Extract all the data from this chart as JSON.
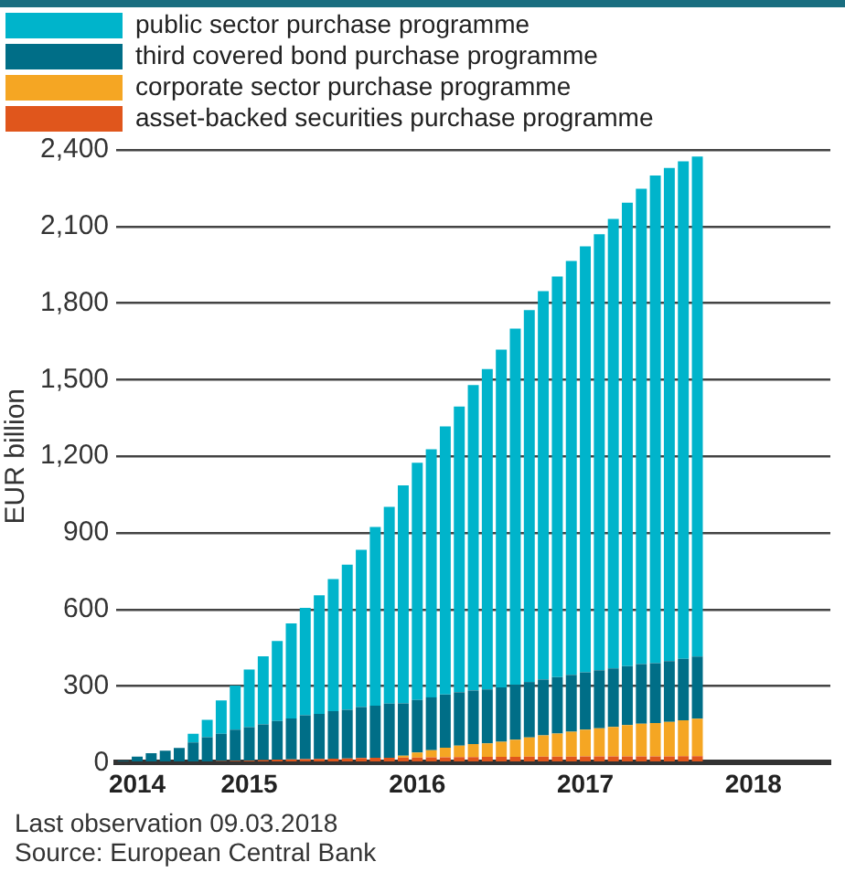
{
  "chart_data": {
    "type": "bar",
    "stacked": true,
    "ylabel": "EUR billion",
    "categories": [
      null,
      "2014",
      null,
      null,
      null,
      null,
      null,
      null,
      null,
      "2015",
      null,
      null,
      null,
      null,
      null,
      null,
      null,
      null,
      null,
      null,
      null,
      "2016",
      null,
      null,
      null,
      null,
      null,
      null,
      null,
      null,
      null,
      null,
      null,
      "2017",
      null,
      null,
      null,
      null,
      null,
      null,
      null,
      null,
      null,
      null,
      null,
      "2018",
      null,
      null,
      null,
      null,
      null
    ],
    "series": [
      {
        "name": "asset-backed securities purchase programme",
        "color": "#e0561c",
        "values": [
          null,
          null,
          null,
          null,
          null,
          null,
          null,
          7,
          8,
          9,
          10,
          12,
          13,
          14,
          15,
          16,
          17,
          18,
          19,
          19,
          20,
          20,
          21,
          21,
          22,
          22,
          23,
          23,
          23,
          24,
          24,
          24,
          24,
          25,
          25,
          25,
          25,
          25,
          25,
          25,
          26,
          26,
          null,
          null,
          null,
          null,
          null,
          null,
          null,
          null,
          null
        ]
      },
      {
        "name": "corporate sector purchase programme",
        "color": "#f5a623",
        "values": [
          0,
          0,
          0,
          0,
          0,
          0,
          0,
          0,
          0,
          0,
          0,
          0,
          0,
          0,
          0,
          0,
          0,
          0,
          0,
          0,
          7,
          20,
          28,
          38,
          45,
          51,
          53,
          59,
          67,
          75,
          83,
          90,
          97,
          104,
          110,
          115,
          122,
          128,
          130,
          135,
          140,
          146,
          null,
          null,
          null,
          null,
          null,
          null,
          null,
          null,
          null
        ]
      },
      {
        "name": "third covered bond purchase programme",
        "color": "#006e87",
        "values": [
          8,
          24,
          37,
          47,
          58,
          79,
          100,
          106,
          121,
          130,
          140,
          151,
          160,
          172,
          176,
          186,
          190,
          200,
          204,
          212,
          205,
          206,
          207,
          208,
          209,
          210,
          211,
          213,
          215,
          217,
          219,
          221,
          223,
          225,
          227,
          229,
          231,
          233,
          235,
          238,
          241,
          244,
          null,
          null,
          null,
          null,
          null,
          null,
          null,
          null,
          null
        ]
      },
      {
        "name": "public sector purchase programme",
        "color": "#00b4cb",
        "values": [
          0,
          0,
          0,
          0,
          0,
          34,
          68,
          131,
          173,
          226,
          267,
          314,
          373,
          420,
          465,
          517,
          569,
          616,
          700,
          771,
          854,
          929,
          972,
          1050,
          1119,
          1196,
          1255,
          1323,
          1395,
          1457,
          1521,
          1569,
          1621,
          1668,
          1708,
          1761,
          1815,
          1862,
          1910,
          1931,
          1948,
          1958,
          null,
          null,
          null,
          null,
          null,
          null,
          null,
          null,
          null
        ]
      }
    ],
    "ylim": [
      0,
      2400
    ],
    "yticks": [
      0,
      {
        "value": 300,
        "label": "300"
      },
      {
        "value": 600,
        "label": "600"
      },
      {
        "value": 900,
        "label": "900"
      },
      {
        "value": 1200,
        "label": "1,200"
      },
      {
        "value": 1500,
        "label": "1,500"
      },
      {
        "value": 1800,
        "label": "1,800"
      },
      {
        "value": 2100,
        "label": "2,100"
      },
      {
        "value": 2400,
        "label": "2,400"
      }
    ],
    "grid": "y",
    "legend": "top left",
    "annotations": [
      "Last observation 09.03.2018",
      "Source: European Central Bank"
    ]
  }
}
